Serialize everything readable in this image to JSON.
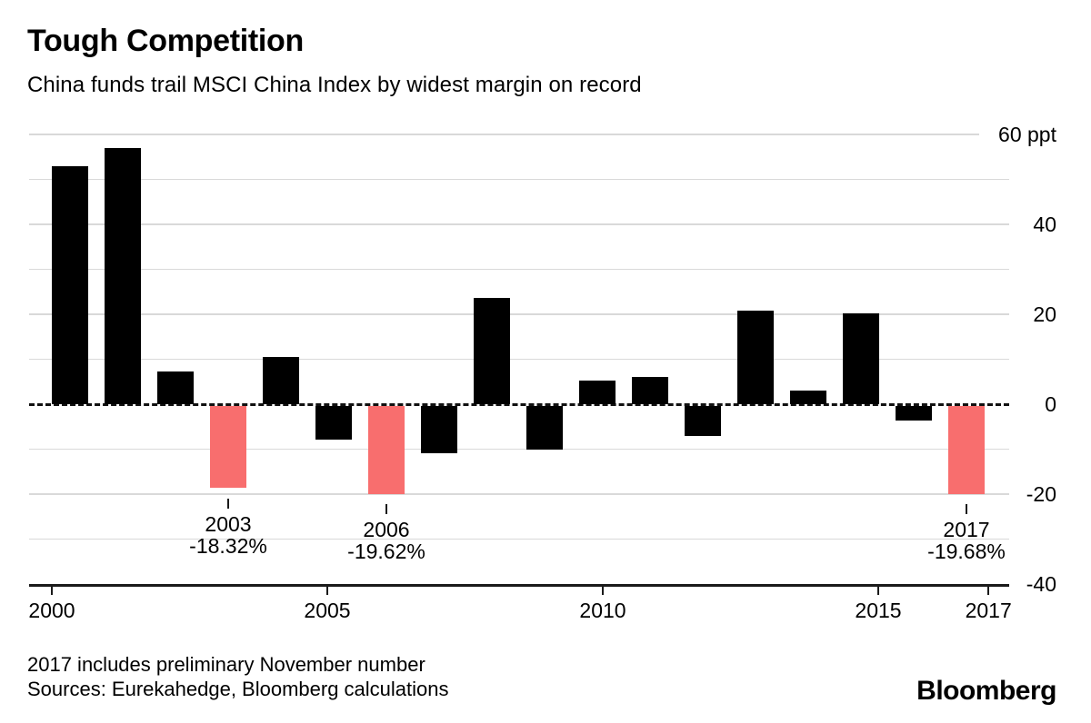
{
  "header": {
    "title": "Tough Competition",
    "subtitle": "China funds trail MSCI China Index by widest margin on record"
  },
  "chart_data": {
    "type": "bar",
    "title": "Tough Competition",
    "subtitle": "China funds trail MSCI China Index by widest margin on record",
    "unit": "ppt",
    "categories": [
      2000,
      2001,
      2002,
      2003,
      2004,
      2005,
      2006,
      2007,
      2008,
      2009,
      2010,
      2011,
      2012,
      2013,
      2014,
      2015,
      2016,
      2017
    ],
    "values": [
      52.9,
      57.0,
      7.3,
      -18.32,
      10.5,
      -7.5,
      -19.62,
      -10.7,
      23.6,
      -9.8,
      5.3,
      6.1,
      -6.7,
      20.8,
      3.0,
      20.2,
      -3.4,
      -19.68
    ],
    "highlighted_years": [
      2003,
      2006,
      2017
    ],
    "colors": {
      "bar_default": "#000000",
      "bar_highlight": "#f86e6e",
      "gridline": "#d9d9d9"
    },
    "ylim": [
      -40,
      60
    ],
    "gridline_step": 10,
    "grid": true,
    "zero_line_style": "dashed",
    "y_axis": {
      "side": "right",
      "ticks": [
        {
          "value": 60,
          "label": "60 ppt"
        },
        {
          "value": 40,
          "label": "40"
        },
        {
          "value": 20,
          "label": "20"
        },
        {
          "value": 0,
          "label": "0"
        },
        {
          "value": -20,
          "label": "-20"
        },
        {
          "value": -40,
          "label": "-40"
        }
      ]
    },
    "x_axis": {
      "ticks": [
        {
          "year": 2000,
          "label": "2000"
        },
        {
          "year": 2005,
          "label": "2005"
        },
        {
          "year": 2010,
          "label": "2010"
        },
        {
          "year": 2015,
          "label": "2015"
        },
        {
          "year": 2017,
          "label": "2017"
        }
      ]
    },
    "annotations": [
      {
        "year": 2003,
        "year_label": "2003",
        "value_label": "-18.32%"
      },
      {
        "year": 2006,
        "year_label": "2006",
        "value_label": "-19.62%"
      },
      {
        "year": 2017,
        "year_label": "2017",
        "value_label": "-19.68%"
      }
    ]
  },
  "footer": {
    "note": "2017 includes preliminary November number",
    "sources": "Sources: Eurekahedge, Bloomberg calculations",
    "brand": "Bloomberg"
  }
}
